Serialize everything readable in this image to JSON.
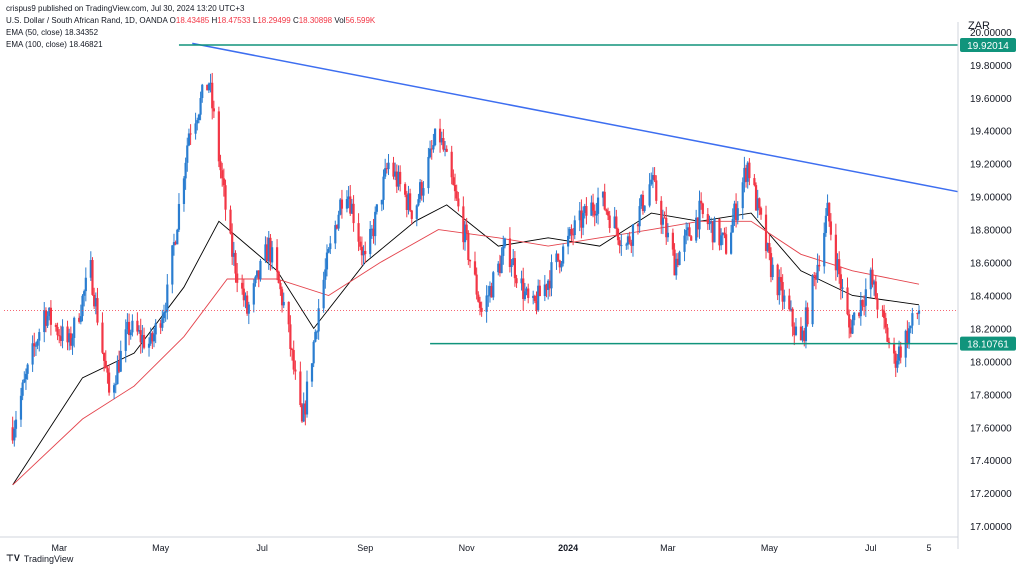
{
  "header": {
    "published": "crispus9 published on TradingView.com, Jul 30, 2024 13:20 UTC+3",
    "symbol": "U.S. Dollar / South African Rand, 1D, OANDA",
    "ohlc": [
      {
        "label": "O",
        "value": "18.43485"
      },
      {
        "label": "H",
        "value": "18.47533"
      },
      {
        "label": "L",
        "value": "18.29499"
      },
      {
        "label": "C",
        "value": "18.30898"
      },
      {
        "label": "Vol",
        "value": "56.599K"
      }
    ],
    "ema50_label": "EMA (50, close)",
    "ema50_value": "18.34352",
    "ema100_label": "EMA (100, close)",
    "ema100_value": "18.46821"
  },
  "currency": "ZAR",
  "footer": {
    "brand": "TradingView"
  },
  "colors": {
    "up": "#2a7dd0",
    "down": "#f23645",
    "ema50": "#000000",
    "ema100": "#e4434c",
    "trendline": "#3d6ef0",
    "level": "#10947c",
    "current": "#f23645"
  },
  "chart_data": {
    "type": "candlestick",
    "x": {
      "range": [
        "2024-01-28",
        "2024-08-05"
      ]
    },
    "ylim": [
      16.94,
      20.06
    ],
    "yticks": [
      "20.00000",
      "19.80000",
      "19.60000",
      "19.40000",
      "19.20000",
      "19.00000",
      "18.80000",
      "18.60000",
      "18.40000",
      "18.20000",
      "18.00000",
      "17.80000",
      "17.60000",
      "17.40000",
      "17.20000",
      "17.00000"
    ],
    "xticks": [
      {
        "label": "Mar",
        "date": "2023-03-01"
      },
      {
        "label": "May",
        "date": "2023-05-01"
      },
      {
        "label": "Jul",
        "date": "2023-07-01"
      },
      {
        "label": "Sep",
        "date": "2023-09-01"
      },
      {
        "label": "Nov",
        "date": "2023-11-01"
      },
      {
        "label": "2024",
        "date": "2024-01-01"
      },
      {
        "label": "Mar",
        "date": "2024-03-01"
      },
      {
        "label": "May",
        "date": "2024-05-01"
      },
      {
        "label": "Jul",
        "date": "2024-07-01"
      },
      {
        "label": "5",
        "date": "2024-08-05"
      }
    ],
    "horizontal_levels": [
      {
        "value": 19.92014,
        "label": "19.92014"
      },
      {
        "value": 18.10761,
        "label": "18.10761"
      }
    ],
    "current_price": 18.30898,
    "trendline": [
      {
        "date": "2023-05-20",
        "value": 19.93
      },
      {
        "date": "2024-08-15",
        "value": 19.03
      }
    ],
    "price_path": [
      {
        "date": "2023-02-01",
        "value": 17.6
      },
      {
        "date": "2023-02-20",
        "value": 18.3
      },
      {
        "date": "2023-03-07",
        "value": 18.1
      },
      {
        "date": "2023-03-20",
        "value": 18.55
      },
      {
        "date": "2023-03-31",
        "value": 17.8
      },
      {
        "date": "2023-04-12",
        "value": 18.2
      },
      {
        "date": "2023-04-25",
        "value": 18.1
      },
      {
        "date": "2023-05-05",
        "value": 18.4
      },
      {
        "date": "2023-05-18",
        "value": 19.4
      },
      {
        "date": "2023-05-30",
        "value": 19.7
      },
      {
        "date": "2023-06-12",
        "value": 18.7
      },
      {
        "date": "2023-06-22",
        "value": 18.3
      },
      {
        "date": "2023-07-05",
        "value": 18.7
      },
      {
        "date": "2023-07-15",
        "value": 18.3
      },
      {
        "date": "2023-07-25",
        "value": 17.6
      },
      {
        "date": "2023-08-05",
        "value": 18.4
      },
      {
        "date": "2023-08-20",
        "value": 19.1
      },
      {
        "date": "2023-09-01",
        "value": 18.6
      },
      {
        "date": "2023-09-15",
        "value": 19.2
      },
      {
        "date": "2023-09-30",
        "value": 18.9
      },
      {
        "date": "2023-10-15",
        "value": 19.4
      },
      {
        "date": "2023-10-30",
        "value": 18.8
      },
      {
        "date": "2023-11-10",
        "value": 18.3
      },
      {
        "date": "2023-11-25",
        "value": 18.7
      },
      {
        "date": "2023-12-10",
        "value": 18.3
      },
      {
        "date": "2023-12-25",
        "value": 18.6
      },
      {
        "date": "2024-01-05",
        "value": 18.8
      },
      {
        "date": "2024-01-20",
        "value": 19.0
      },
      {
        "date": "2024-02-05",
        "value": 18.7
      },
      {
        "date": "2024-02-20",
        "value": 19.1
      },
      {
        "date": "2024-03-05",
        "value": 18.6
      },
      {
        "date": "2024-03-20",
        "value": 18.9
      },
      {
        "date": "2024-04-05",
        "value": 18.7
      },
      {
        "date": "2024-04-18",
        "value": 19.2
      },
      {
        "date": "2024-05-01",
        "value": 18.6
      },
      {
        "date": "2024-05-20",
        "value": 18.1
      },
      {
        "date": "2024-06-05",
        "value": 18.9
      },
      {
        "date": "2024-06-18",
        "value": 18.2
      },
      {
        "date": "2024-07-01",
        "value": 18.5
      },
      {
        "date": "2024-07-15",
        "value": 18.0
      },
      {
        "date": "2024-07-30",
        "value": 18.31
      }
    ],
    "ema50_path": [
      {
        "date": "2023-02-01",
        "value": 17.25
      },
      {
        "date": "2023-03-15",
        "value": 17.9
      },
      {
        "date": "2023-04-15",
        "value": 18.05
      },
      {
        "date": "2023-05-15",
        "value": 18.45
      },
      {
        "date": "2023-06-05",
        "value": 18.85
      },
      {
        "date": "2023-07-10",
        "value": 18.55
      },
      {
        "date": "2023-08-01",
        "value": 18.2
      },
      {
        "date": "2023-09-01",
        "value": 18.6
      },
      {
        "date": "2023-10-01",
        "value": 18.85
      },
      {
        "date": "2023-10-20",
        "value": 18.95
      },
      {
        "date": "2023-11-20",
        "value": 18.7
      },
      {
        "date": "2023-12-20",
        "value": 18.75
      },
      {
        "date": "2024-01-20",
        "value": 18.7
      },
      {
        "date": "2024-02-20",
        "value": 18.9
      },
      {
        "date": "2024-03-20",
        "value": 18.85
      },
      {
        "date": "2024-04-20",
        "value": 18.9
      },
      {
        "date": "2024-05-20",
        "value": 18.55
      },
      {
        "date": "2024-06-20",
        "value": 18.4
      },
      {
        "date": "2024-07-30",
        "value": 18.34352
      }
    ],
    "ema100_path": [
      {
        "date": "2023-02-01",
        "value": 17.25
      },
      {
        "date": "2023-03-15",
        "value": 17.65
      },
      {
        "date": "2023-04-15",
        "value": 17.85
      },
      {
        "date": "2023-05-15",
        "value": 18.15
      },
      {
        "date": "2023-06-10",
        "value": 18.5
      },
      {
        "date": "2023-07-10",
        "value": 18.5
      },
      {
        "date": "2023-08-10",
        "value": 18.4
      },
      {
        "date": "2023-09-10",
        "value": 18.6
      },
      {
        "date": "2023-10-15",
        "value": 18.8
      },
      {
        "date": "2023-11-20",
        "value": 18.75
      },
      {
        "date": "2023-12-20",
        "value": 18.7
      },
      {
        "date": "2024-01-20",
        "value": 18.75
      },
      {
        "date": "2024-02-20",
        "value": 18.8
      },
      {
        "date": "2024-03-20",
        "value": 18.85
      },
      {
        "date": "2024-04-20",
        "value": 18.85
      },
      {
        "date": "2024-05-20",
        "value": 18.65
      },
      {
        "date": "2024-06-20",
        "value": 18.55
      },
      {
        "date": "2024-07-30",
        "value": 18.46821
      }
    ]
  }
}
